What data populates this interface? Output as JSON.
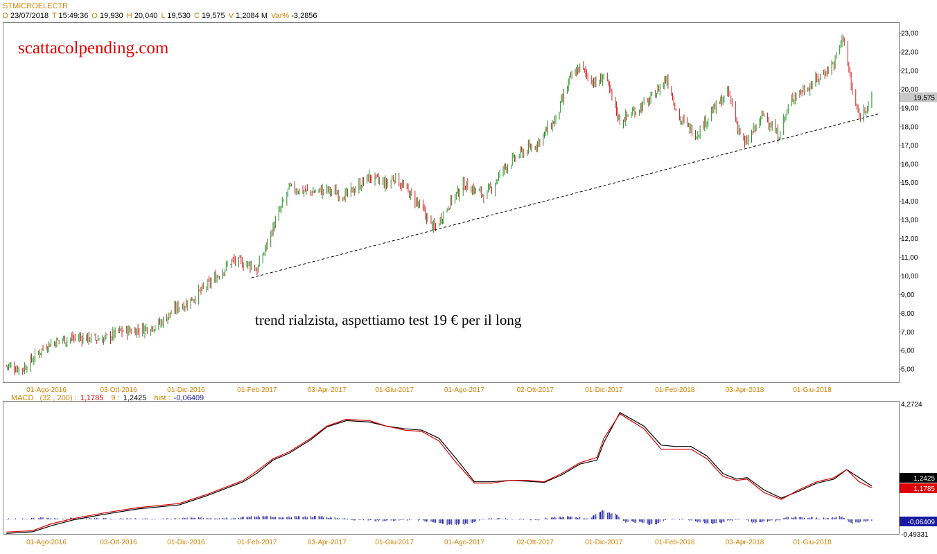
{
  "header": {
    "symbol": "STMICROELECTR",
    "d_label": "D",
    "date": "23/07/2018",
    "t_label": "T",
    "time": "15:49:36",
    "o_label": "O",
    "open": "19,930",
    "h_label": "H",
    "high": "20,040",
    "l_label": "L",
    "low": "19,530",
    "c_label": "C",
    "close": "19,575",
    "v_label": "V",
    "volume": "1,2084 M",
    "var_label": "Var%",
    "var": "-3,2856"
  },
  "macd_header": {
    "label": "MACD",
    "params": "(32 , 200) :",
    "macd_value": "1,1785",
    "signal_period": "9 :",
    "signal_value": "1,2425",
    "hist_label": "hist :",
    "hist_value": "-0,06409"
  },
  "annotations": {
    "website": "scattacolpending.com",
    "comment": "trend rialzista, aspettiamo test 19 € per il long"
  },
  "colors": {
    "up_candle": "#1f8f1f",
    "down_candle": "#cc2222",
    "macd_line": "#dd0000",
    "signal_line": "#000000",
    "histogram": "#1a1aa0",
    "date_labels": "#d08000",
    "trendline": "#000000"
  },
  "chart_data": [
    {
      "type": "candlestick",
      "title": "STMICROELECTR",
      "x_ticks": [
        "01-Ago-2016",
        "03-Ott-2016",
        "01-Dic-2016",
        "01-Feb-2017",
        "03-Apr-2017",
        "01-Giu-2017",
        "01-Ago-2017",
        "02-Ott-2017",
        "01-Dic-2017",
        "01-Feb-2018",
        "03-Apr-2018",
        "01-Giu-2018"
      ],
      "y_ticks": [
        "5,00",
        "6,00",
        "7,00",
        "8,00",
        "9,00",
        "10,00",
        "11,00",
        "12,00",
        "13,00",
        "14,00",
        "15,00",
        "16,00",
        "17,00",
        "18,00",
        "19,00",
        "20,00",
        "21,00",
        "22,00",
        "23,00"
      ],
      "ylim": [
        4.3,
        23.6
      ],
      "last_price_label": "19,575",
      "close_path": {
        "x": [
          "2016-06-27",
          "2016-07-11",
          "2016-08-01",
          "2016-08-15",
          "2016-09-01",
          "2016-09-20",
          "2016-10-03",
          "2016-10-20",
          "2016-11-07",
          "2016-11-25",
          "2016-12-01",
          "2016-12-20",
          "2017-01-10",
          "2017-01-27",
          "2017-02-01",
          "2017-02-15",
          "2017-03-01",
          "2017-03-20",
          "2017-04-03",
          "2017-04-20",
          "2017-05-10",
          "2017-05-25",
          "2017-06-01",
          "2017-06-20",
          "2017-07-06",
          "2017-07-20",
          "2017-08-01",
          "2017-08-20",
          "2017-09-05",
          "2017-09-20",
          "2017-10-02",
          "2017-10-20",
          "2017-11-01",
          "2017-11-10",
          "2017-11-25",
          "2017-12-01",
          "2017-12-15",
          "2018-01-10",
          "2018-01-25",
          "2018-02-05",
          "2018-02-20",
          "2018-03-05",
          "2018-03-20",
          "2018-03-27",
          "2018-04-03",
          "2018-04-20",
          "2018-05-02",
          "2018-05-15",
          "2018-06-01",
          "2018-06-20",
          "2018-06-28",
          "2018-07-06",
          "2018-07-12",
          "2018-07-23"
        ],
        "close": [
          5.2,
          5.0,
          6.3,
          6.6,
          6.7,
          6.6,
          7.0,
          7.1,
          7.4,
          8.4,
          8.5,
          9.5,
          10.8,
          10.6,
          10.3,
          12.6,
          14.7,
          14.5,
          14.6,
          14.3,
          15.3,
          14.9,
          15.3,
          14.0,
          12.5,
          14.0,
          14.9,
          14.3,
          15.8,
          16.6,
          17.0,
          18.4,
          20.5,
          21.2,
          20.2,
          20.8,
          18.3,
          19.4,
          20.6,
          18.4,
          17.6,
          18.8,
          19.8,
          18.2,
          17.0,
          18.7,
          17.5,
          19.6,
          20.3,
          21.4,
          22.9,
          19.8,
          18.5,
          19.575
        ]
      },
      "trendline": {
        "style": "dashed",
        "from": {
          "x": "2017-01-27",
          "y": 9.9
        },
        "to": {
          "x": "2018-07-30",
          "y": 18.7
        }
      }
    },
    {
      "type": "line",
      "title": "MACD",
      "series": [
        {
          "name": "MACD (32 , 200)",
          "last": 1.1785
        },
        {
          "name": "9",
          "last": 1.2425
        },
        {
          "name": "hist",
          "last": -0.06409
        }
      ],
      "y_ticks": [
        "4,2724",
        "-0,49331"
      ],
      "x_ticks": [
        "01-Ago-2016",
        "03-Ott-2016",
        "01-Dic-2016",
        "01-Feb-2017",
        "03-Apr-2017",
        "01-Giu-2017",
        "01-Ago-2017",
        "02-Ott-2017",
        "01-Dic-2017",
        "01-Feb-2018",
        "03-Apr-2018",
        "01-Giu-2018"
      ],
      "x": [
        "2016-06-27",
        "2016-07-20",
        "2016-08-05",
        "2016-08-25",
        "2016-09-20",
        "2016-10-20",
        "2016-11-25",
        "2016-12-20",
        "2017-01-20",
        "2017-02-01",
        "2017-02-15",
        "2017-03-01",
        "2017-03-20",
        "2017-04-03",
        "2017-04-20",
        "2017-05-10",
        "2017-05-25",
        "2017-06-10",
        "2017-06-25",
        "2017-07-10",
        "2017-07-25",
        "2017-08-10",
        "2017-08-25",
        "2017-09-10",
        "2017-09-25",
        "2017-10-10",
        "2017-10-25",
        "2017-11-10",
        "2017-11-25",
        "2017-12-01",
        "2017-12-15",
        "2018-01-05",
        "2018-01-20",
        "2018-02-01",
        "2018-02-15",
        "2018-03-01",
        "2018-03-15",
        "2018-03-27",
        "2018-04-05",
        "2018-04-20",
        "2018-05-05",
        "2018-05-20",
        "2018-06-05",
        "2018-06-20",
        "2018-07-01",
        "2018-07-12",
        "2018-07-23"
      ],
      "macd": [
        -0.45,
        -0.4,
        -0.15,
        0.05,
        0.25,
        0.45,
        0.6,
        0.95,
        1.45,
        1.8,
        2.25,
        2.5,
        3.0,
        3.45,
        3.7,
        3.65,
        3.45,
        3.3,
        3.25,
        2.9,
        2.1,
        1.35,
        1.35,
        1.45,
        1.45,
        1.4,
        1.7,
        2.1,
        2.3,
        3.0,
        3.9,
        3.35,
        2.6,
        2.6,
        2.6,
        2.25,
        1.6,
        1.45,
        1.5,
        1.0,
        0.75,
        1.1,
        1.4,
        1.55,
        1.85,
        1.4,
        1.1785
      ],
      "signal": [
        -0.5,
        -0.44,
        -0.22,
        0.0,
        0.2,
        0.4,
        0.55,
        0.9,
        1.4,
        1.72,
        2.2,
        2.45,
        2.95,
        3.42,
        3.65,
        3.6,
        3.45,
        3.35,
        3.3,
        3.0,
        2.25,
        1.4,
        1.4,
        1.45,
        1.42,
        1.38,
        1.65,
        2.05,
        2.2,
        2.85,
        3.95,
        3.45,
        2.75,
        2.7,
        2.7,
        2.35,
        1.7,
        1.5,
        1.55,
        1.1,
        0.8,
        1.05,
        1.35,
        1.5,
        1.85,
        1.55,
        1.2425
      ]
    }
  ]
}
